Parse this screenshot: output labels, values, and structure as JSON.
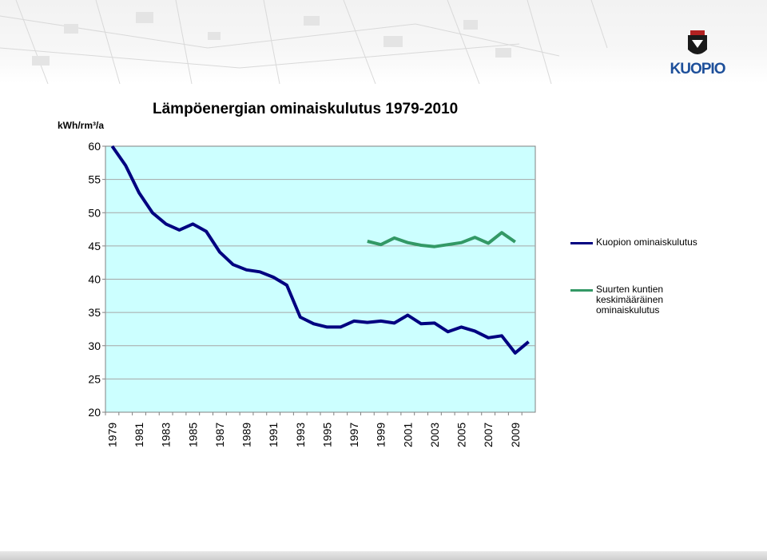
{
  "header": {
    "logo_text": "KUOPIO"
  },
  "colors": {
    "kuopio": "#000080",
    "average": "#339966",
    "plot_background": "#ccffff",
    "brand_blue": "#1d4f9a"
  },
  "chart_data": {
    "type": "line",
    "title": "Lämpöenergian ominaiskulutus 1979-2010",
    "ylabel": "kWh/rm³/a",
    "xlabel": "",
    "ylim": [
      20,
      60
    ],
    "yticks": [
      "20",
      "25",
      "30",
      "35",
      "40",
      "45",
      "50",
      "55",
      "60"
    ],
    "x": [
      1979,
      1980,
      1981,
      1982,
      1983,
      1984,
      1985,
      1986,
      1987,
      1988,
      1989,
      1990,
      1991,
      1992,
      1993,
      1994,
      1995,
      1996,
      1997,
      1998,
      1999,
      2000,
      2001,
      2002,
      2003,
      2004,
      2005,
      2006,
      2007,
      2008,
      2009,
      2010
    ],
    "xtick_labels": [
      "1979",
      "1981",
      "1983",
      "1985",
      "1987",
      "1989",
      "1991",
      "1993",
      "1995",
      "1997",
      "1999",
      "2001",
      "2003",
      "2005",
      "2007",
      "2009"
    ],
    "grid": "horizontal",
    "legend_position": "right",
    "series": [
      {
        "name": "Kuopion ominaiskulutus",
        "values": [
          60.3,
          57.1,
          53.0,
          50.0,
          48.3,
          47.4,
          48.3,
          47.2,
          44.1,
          42.2,
          41.4,
          41.1,
          40.3,
          39.1,
          34.3,
          33.3,
          32.8,
          32.8,
          33.7,
          33.5,
          33.7,
          33.4,
          34.6,
          33.3,
          33.4,
          32.1,
          32.8,
          32.2,
          31.2,
          31.5,
          28.9,
          30.6
        ]
      },
      {
        "name": "Suurten kuntien keskimääräinen ominaiskulutus",
        "values": [
          null,
          null,
          null,
          null,
          null,
          null,
          null,
          null,
          null,
          null,
          null,
          null,
          null,
          null,
          null,
          null,
          null,
          null,
          null,
          45.7,
          45.2,
          46.2,
          45.5,
          45.1,
          44.9,
          45.2,
          45.5,
          46.3,
          45.4,
          47.0,
          45.6,
          null
        ]
      }
    ]
  }
}
